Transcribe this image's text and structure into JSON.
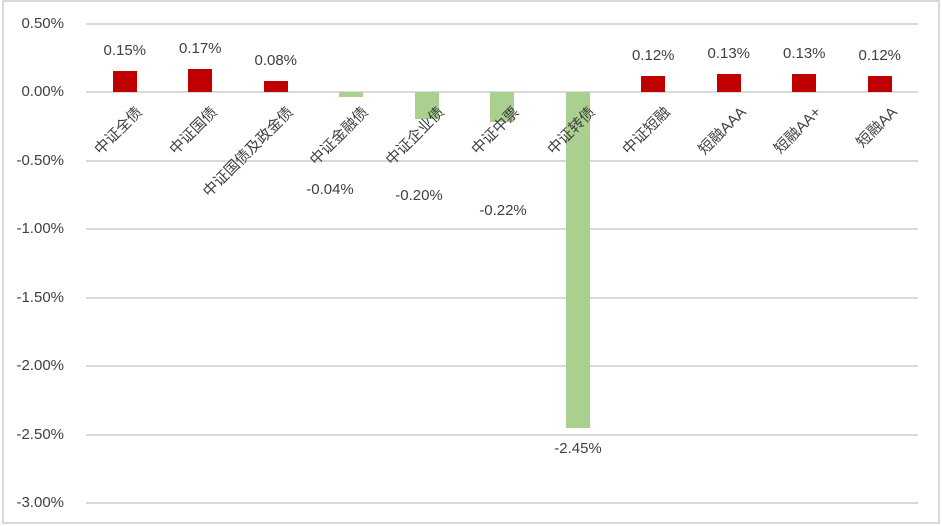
{
  "chart_data": {
    "type": "bar",
    "title": "",
    "xlabel": "",
    "ylabel": "",
    "categories": [
      "中证全债",
      "中证国债",
      "中证国债及政金债",
      "中证金融债",
      "中证企业债",
      "中证中票",
      "中证转债",
      "中证短融",
      "短融AAA",
      "短融AA+",
      "短融AA"
    ],
    "values": [
      0.15,
      0.17,
      0.08,
      -0.04,
      -0.2,
      -0.22,
      -2.45,
      0.12,
      0.13,
      0.13,
      0.12
    ],
    "value_labels": [
      "0.15%",
      "0.17%",
      "0.08%",
      "-0.04%",
      "-0.20%",
      "-0.22%",
      "-2.45%",
      "0.12%",
      "0.13%",
      "0.13%",
      "0.12%"
    ],
    "y_tick_labels": [
      "0.50%",
      "0.00%",
      "-0.50%",
      "-1.00%",
      "-1.50%",
      "-2.00%",
      "-2.50%",
      "-3.00%"
    ],
    "y_tick_values": [
      0.5,
      0.0,
      -0.5,
      -1.0,
      -1.5,
      -2.0,
      -2.5,
      -3.0
    ],
    "ylim": [
      -3.0,
      0.5
    ],
    "grid": true,
    "legend": false,
    "colors": {
      "positive_bar": "#c00000",
      "negative_bar": "#a9d08e",
      "gridline": "#d9d9d9",
      "text": "#404040",
      "background": "#ffffff",
      "border": "#d9d9d9"
    }
  }
}
